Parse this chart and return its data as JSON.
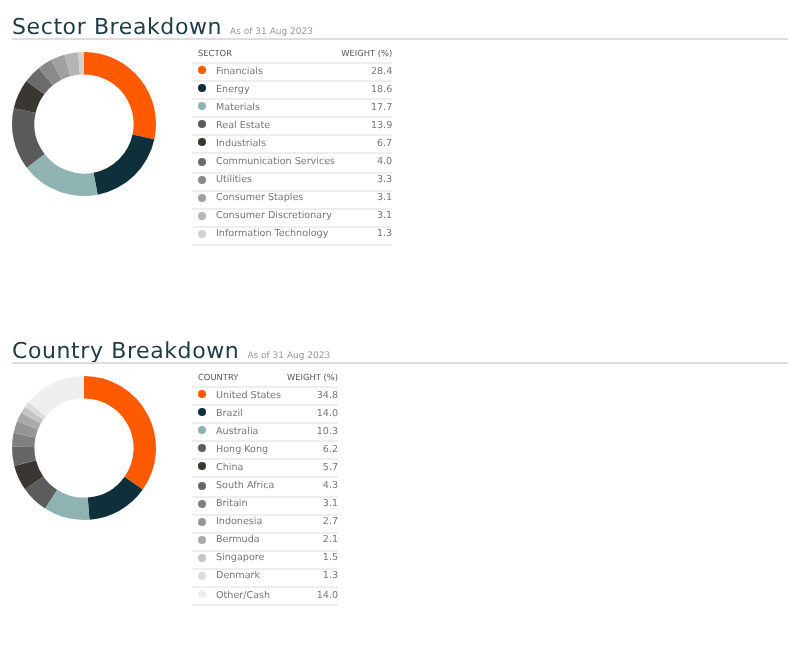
{
  "chart_data": [
    {
      "type": "donut",
      "title": "Sector Breakdown",
      "subtitle": "As of 31 Aug 2023",
      "legend_title": "SECTOR",
      "annotations": [
        "WEIGHT (%)"
      ],
      "legend": "right",
      "categories": [
        "Financials",
        "Energy",
        "Materials",
        "Real Estate",
        "Industrials",
        "Communication Services",
        "Utilities",
        "Consumer Staples",
        "Consumer Discretionary",
        "Information Technology"
      ],
      "values": [
        28.4,
        18.6,
        17.7,
        13.9,
        6.7,
        4.0,
        3.3,
        3.1,
        3.1,
        1.3
      ],
      "value_labels": [
        "28.4",
        "18.6",
        "17.7",
        "13.9",
        "6.7",
        "4.0",
        "3.3",
        "3.1",
        "3.1",
        "1.3"
      ],
      "colors": [
        "#ff5a00",
        "#0f2f3a",
        "#8fb3b0",
        "#5a5a5a",
        "#3a3632",
        "#6b6b6b",
        "#8a8a8a",
        "#a0a0a0",
        "#b5b5b5",
        "#d2d2d2"
      ]
    },
    {
      "type": "donut",
      "title": "Country Breakdown",
      "subtitle": "As of 31 Aug 2023",
      "legend_title": "COUNTRY",
      "annotations": [
        "WEIGHT (%)"
      ],
      "legend": "right",
      "categories": [
        "United States",
        "Brazil",
        "Australia",
        "Hong Kong",
        "China",
        "South Africa",
        "Britain",
        "Indonesia",
        "Bermuda",
        "Singapore",
        "Denmark",
        "Other/Cash"
      ],
      "values": [
        34.8,
        14.0,
        10.3,
        6.2,
        5.7,
        4.3,
        3.1,
        2.7,
        2.1,
        1.5,
        1.3,
        14.0
      ],
      "value_labels": [
        "34.8",
        "14.0",
        "10.3",
        "6.2",
        "5.7",
        "4.3",
        "3.1",
        "2.7",
        "2.1",
        "1.5",
        "1.3",
        "14.0"
      ],
      "colors": [
        "#ff5a00",
        "#0f2f3a",
        "#8fb3b0",
        "#5c5c5c",
        "#3a3632",
        "#666666",
        "#808080",
        "#959595",
        "#aaaaaa",
        "#c5c5c5",
        "#dcdcdc",
        "#efefef"
      ]
    }
  ]
}
